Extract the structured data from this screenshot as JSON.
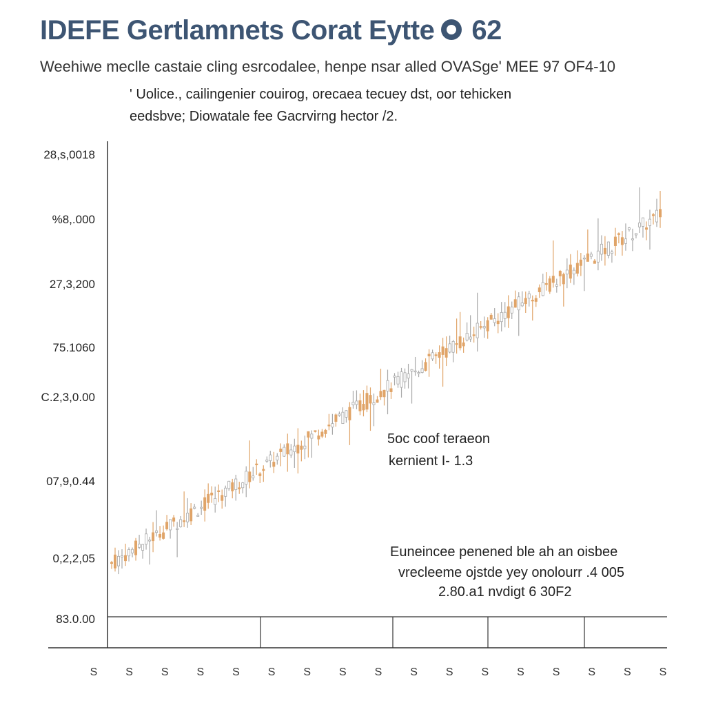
{
  "header": {
    "title_left": "IDEFE  Gertlamnets Corat Eytte",
    "title_right": "62",
    "subtitle": "Weehiwe meclle castaie cling esrcodalee, henpe nsar alled OVASge' MEE 97 OF4-10"
  },
  "notes": {
    "line1": "' Uolice., cailingenier couirog, orecaea tecuey dst, oor tehicken",
    "line2": "eedsbve;  Diowatale fee Gacrvirng hector /2."
  },
  "annotations": {
    "a1_line1": "5oc coof teraeon",
    "a1_line2": "kernient I- 1.3",
    "a2_line1": "Euneincee penened ble ah an oisbee",
    "a2_line2": "vrecleeme ojstde yey onolourr .4 005",
    "a2_line3": "2.80.a1 nvdigt 6 30F2"
  },
  "colors": {
    "title": "#3d5573",
    "up": "#e0a468",
    "down": "#a8a8a8",
    "axis": "#333333"
  },
  "chart_data": {
    "type": "candlestick",
    "y_tick_labels": [
      "28,s,0018",
      "%8,.000",
      "27,3,200",
      "75.1060",
      "C.2,3,0.00",
      "07,9,0.44",
      "0,2,2,05",
      "83.0.00"
    ],
    "x_tick_labels": [
      "S",
      "S",
      "S",
      "S",
      "S",
      "S",
      "S",
      "S",
      "S",
      "S",
      "S",
      "S",
      "S",
      "S",
      "S",
      "S",
      "S"
    ],
    "ylim": [
      0,
      100
    ],
    "trend": {
      "start": 8,
      "end": 93
    },
    "n_bars": 160,
    "grid": false,
    "legend": "none"
  }
}
